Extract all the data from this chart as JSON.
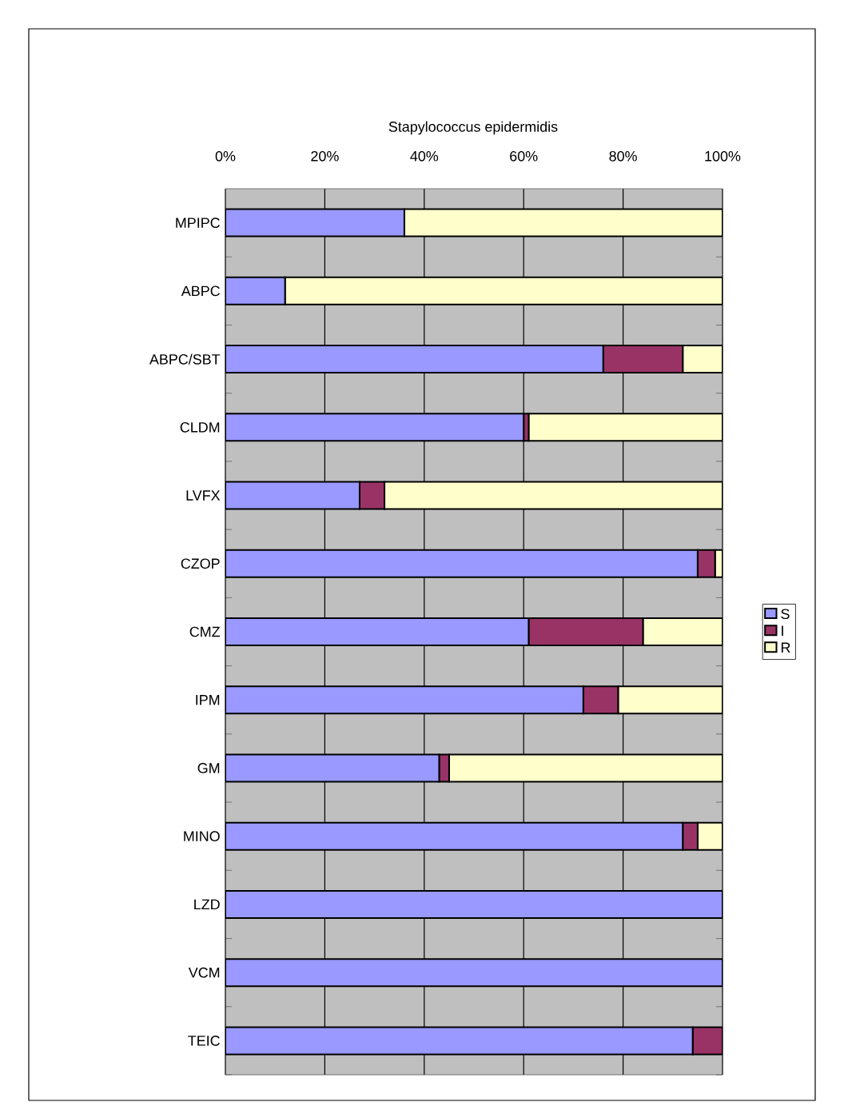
{
  "chart_data": {
    "type": "bar",
    "orientation": "horizontal",
    "stacked": true,
    "title": "Stapylococcus epidermidis",
    "categories": [
      "MPIPC",
      "ABPC",
      "ABPC/SBT",
      "CLDM",
      "LVFX",
      "CZOP",
      "CMZ",
      "IPM",
      "GM",
      "MINO",
      "LZD",
      "VCM",
      "TEIC"
    ],
    "series": [
      {
        "name": "S",
        "color": "#9999ff",
        "values": [
          36,
          12,
          76,
          60,
          27,
          95,
          61,
          72,
          43,
          92,
          100,
          100,
          94
        ]
      },
      {
        "name": "I",
        "color": "#993366",
        "values": [
          0,
          0,
          16,
          1,
          5,
          3.5,
          23,
          7,
          2,
          3,
          0,
          0,
          6
        ]
      },
      {
        "name": "R",
        "color": "#ffffcc",
        "values": [
          64,
          88,
          8,
          39,
          68,
          1.5,
          16,
          21,
          55,
          5,
          0,
          0,
          0
        ]
      }
    ],
    "xlim": [
      0,
      100
    ],
    "xticks": [
      {
        "value": 0,
        "label": "0%"
      },
      {
        "value": 20,
        "label": "20%"
      },
      {
        "value": 40,
        "label": "40%"
      },
      {
        "value": 60,
        "label": "60%"
      },
      {
        "value": 80,
        "label": "80%"
      },
      {
        "value": 100,
        "label": "100%"
      }
    ],
    "grid": "x",
    "legend": "right"
  }
}
